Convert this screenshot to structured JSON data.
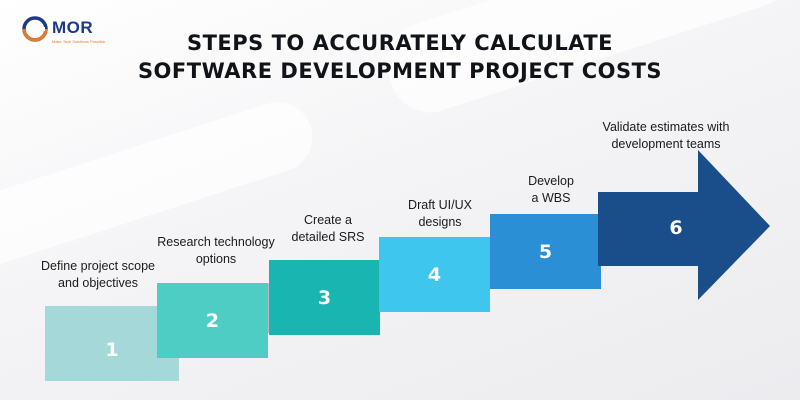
{
  "brand": {
    "name": "MOR",
    "tagline": "Make Tech Solutions Possible"
  },
  "title": {
    "line1": "STEPS TO ACCURATELY CALCULATE",
    "line2": "SOFTWARE DEVELOPMENT PROJECT COSTS"
  },
  "colors": {
    "step1": "#a5d8d8",
    "step2": "#4ecdc4",
    "step3": "#19b6b1",
    "step4": "#3ec6ef",
    "step5": "#2b8fd6",
    "step6": "#1a4e8a",
    "shadow": "#b8bcc2"
  },
  "steps": [
    {
      "number": "1",
      "caption_lines": [
        "Define project scope",
        "and objectives"
      ]
    },
    {
      "number": "2",
      "caption_lines": [
        "Research technology",
        "options"
      ]
    },
    {
      "number": "3",
      "caption_lines": [
        "Create a",
        "detailed SRS"
      ]
    },
    {
      "number": "4",
      "caption_lines": [
        "Draft UI/UX",
        "designs"
      ]
    },
    {
      "number": "5",
      "caption_lines": [
        "Develop",
        "a WBS"
      ]
    },
    {
      "number": "6",
      "caption_lines": [
        "Validate estimates with",
        "development teams"
      ]
    }
  ]
}
